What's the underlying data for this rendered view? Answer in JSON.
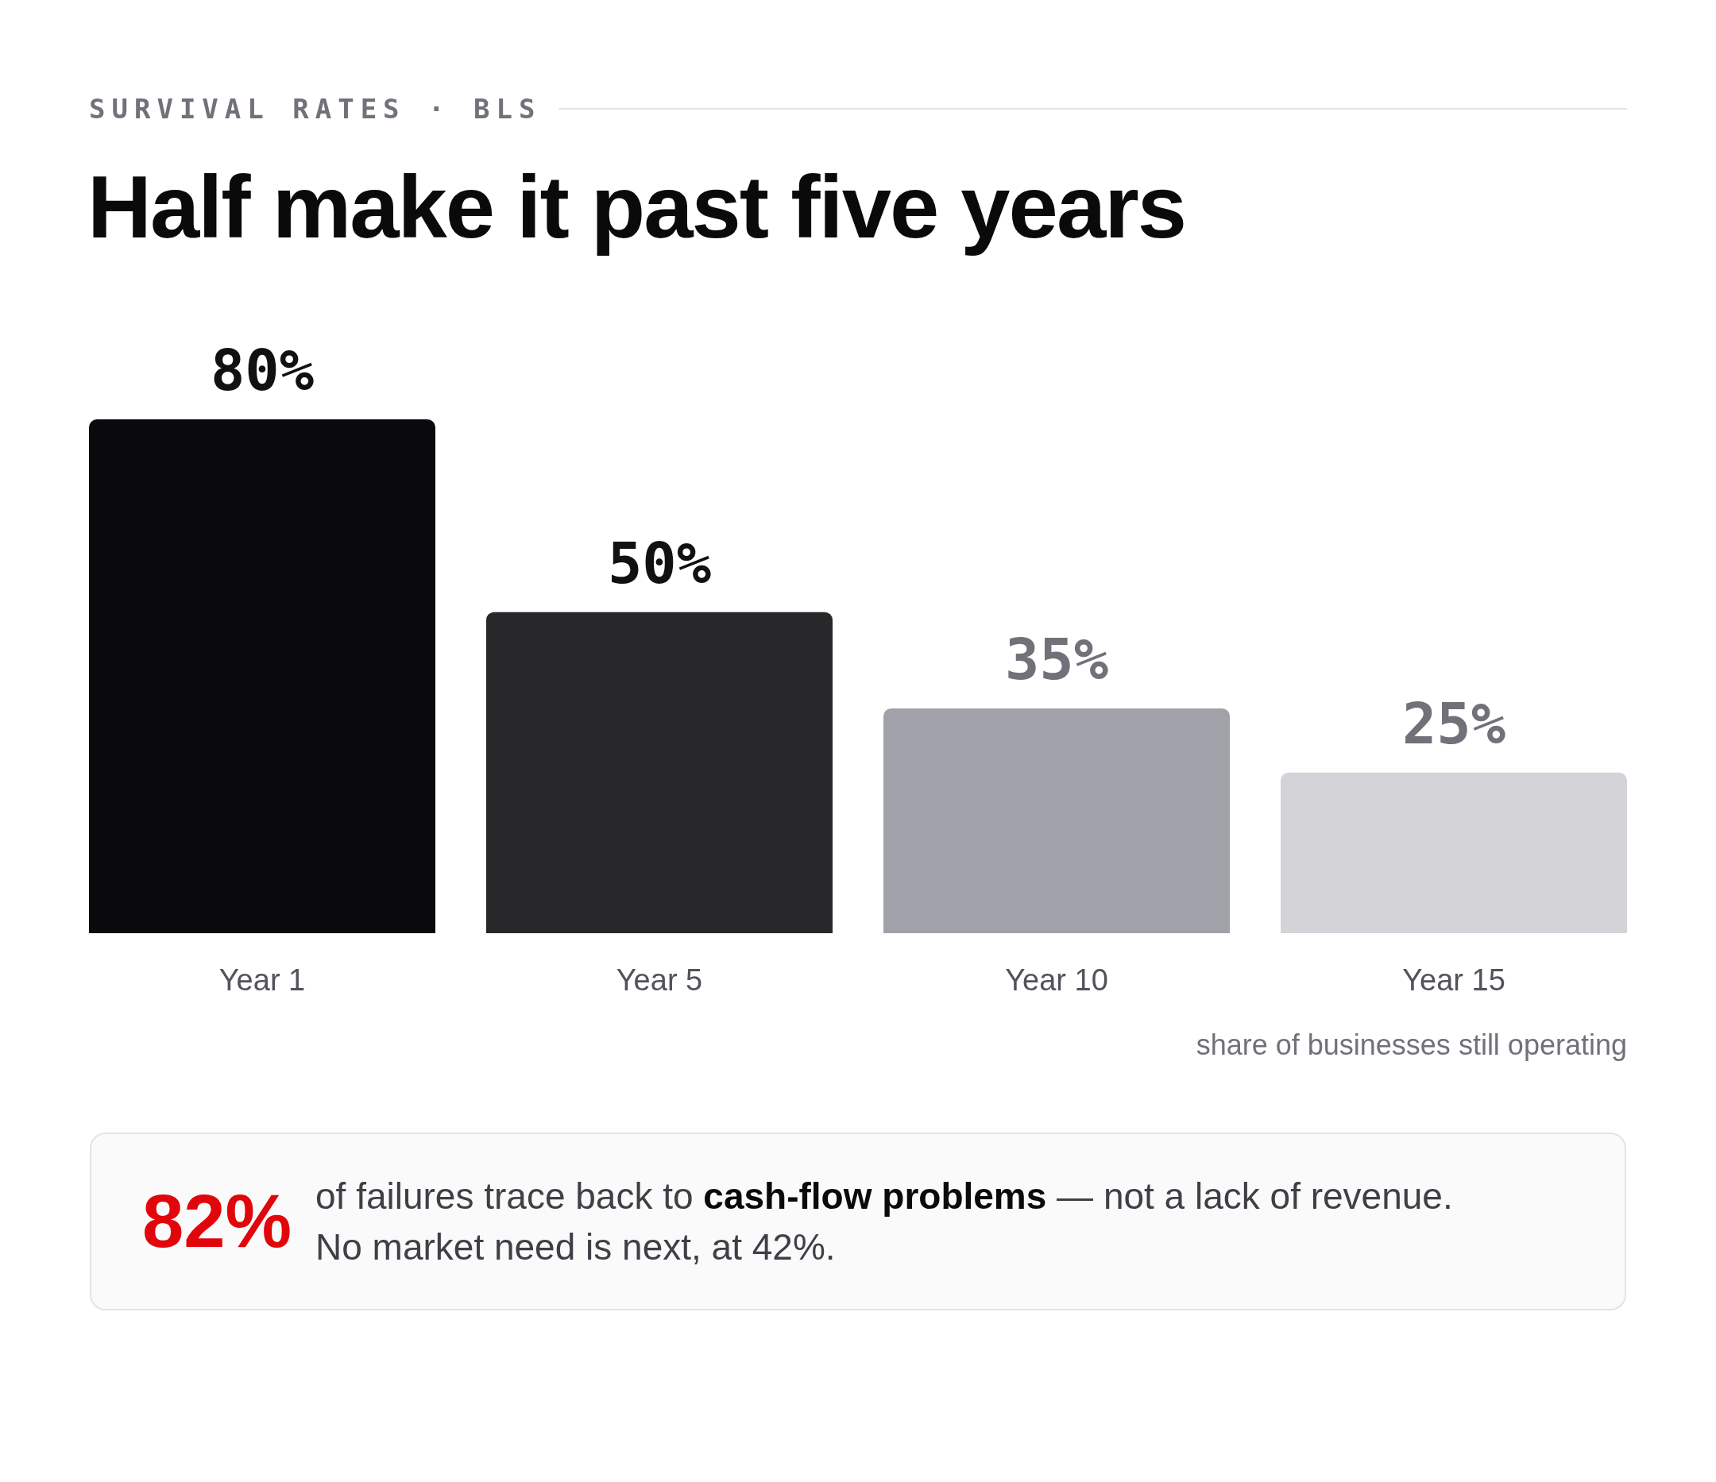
{
  "chart_data": {
    "type": "bar",
    "subtitle": "SURVIVAL RATES · BLS",
    "title": "Half make it past five years",
    "categories": [
      "Year 1",
      "Year 5",
      "Year 10",
      "Year 15"
    ],
    "values": [
      80,
      50,
      35,
      25
    ],
    "colors": [
      "#0a0a0c",
      "#28282b",
      "#a1a1aa",
      "#d4d4d8"
    ],
    "value_labels": [
      "80%",
      "50%",
      "35%",
      "25%"
    ],
    "annotations": [
      "share of businesses still operating",
      "82%",
      "of failures trace back to",
      "cash-flow problems",
      "— not a lack of revenue.",
      "No market need is next, at 42%."
    ]
  }
}
